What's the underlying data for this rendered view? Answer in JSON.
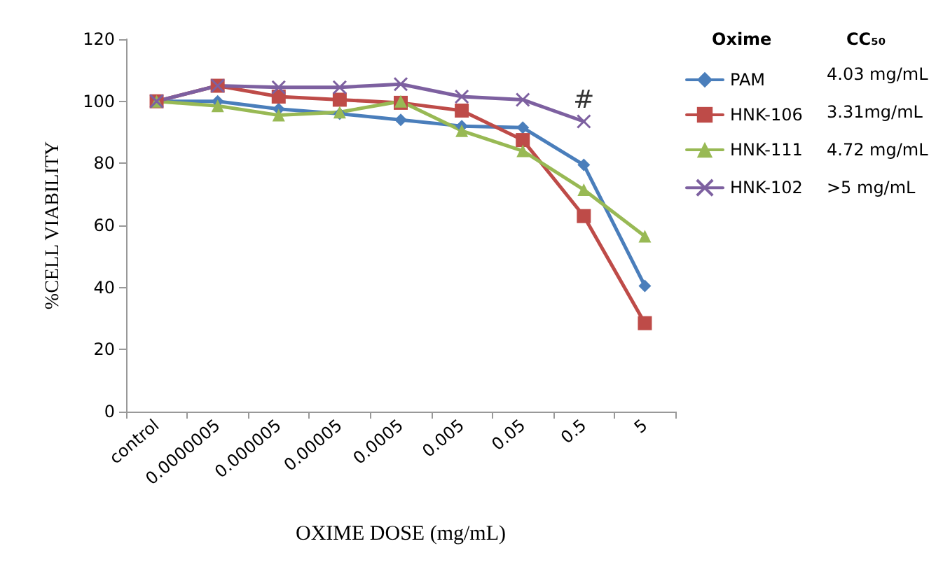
{
  "chart_data": {
    "type": "line",
    "xlabel": "OXIME DOSE (mg/mL)",
    "ylabel": "%CELL VIABILITY",
    "legend_title": "Oxime",
    "legend": "right",
    "grid": false,
    "categories": [
      "control",
      "0.0000005",
      "0.000005",
      "0.00005",
      "0.0005",
      "0.005",
      "0.05",
      "0.5",
      "5"
    ],
    "ylim": [
      0,
      120
    ],
    "yticks": [
      0,
      20,
      40,
      60,
      80,
      100,
      120
    ],
    "series": [
      {
        "name": "PAM",
        "color": "#4a7ebb",
        "marker": "diamond",
        "values": [
          100,
          100,
          97.5,
          96,
          94,
          92,
          91.5,
          79.5,
          40.5
        ]
      },
      {
        "name": "HNK-106",
        "color": "#be4b48",
        "marker": "square",
        "values": [
          100,
          105,
          101.5,
          100.5,
          99.5,
          97,
          87.5,
          63,
          28.5
        ]
      },
      {
        "name": "HNK-111",
        "color": "#98b954",
        "marker": "triangle",
        "values": [
          100,
          98.5,
          95.5,
          96.5,
          100,
          90.5,
          84,
          71.5,
          56.5
        ]
      },
      {
        "name": "HNK-102",
        "color": "#7d60a0",
        "marker": "cross",
        "values": [
          100,
          105,
          104.5,
          104.5,
          105.5,
          101.5,
          100.5,
          93.5,
          null
        ]
      }
    ],
    "annotations": [
      "CC₅₀",
      "4.03 mg/mL",
      "3.31mg/mL",
      "4.72 mg/mL",
      ">5 mg/mL",
      "#"
    ]
  }
}
